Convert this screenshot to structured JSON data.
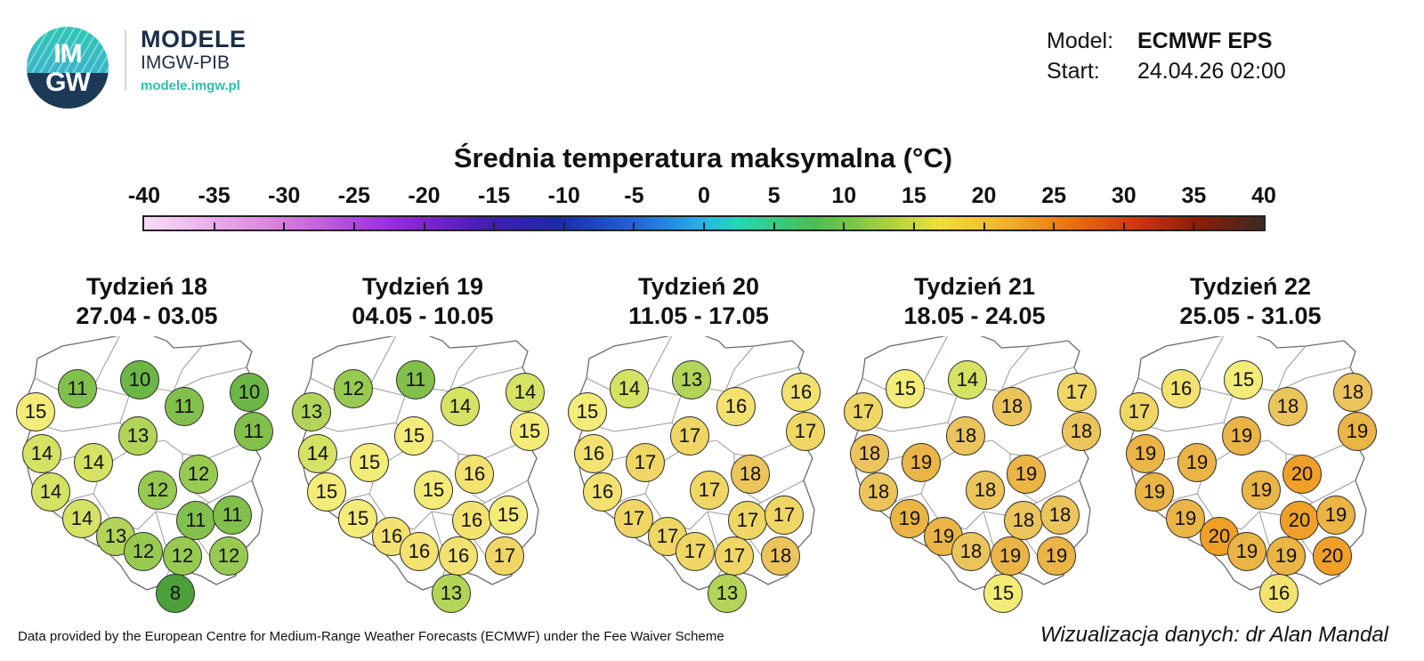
{
  "header": {
    "logo_top": "IM",
    "logo_bottom": "GW",
    "brand_line1": "MODELE",
    "brand_line2": "IMGW-PIB",
    "brand_url": "modele.imgw.pl",
    "model_label": "Model:",
    "model_value": "ECMWF EPS",
    "start_label": "Start:",
    "start_value": "24.04.26 02:00"
  },
  "scale": {
    "title": "Średnia temperatura maksymalna (°C)",
    "ticks": [
      "-40",
      "-35",
      "-30",
      "-25",
      "-20",
      "-15",
      "-10",
      "-5",
      "0",
      "5",
      "10",
      "15",
      "20",
      "25",
      "30",
      "35",
      "40"
    ],
    "min": -40,
    "max": 40
  },
  "weeks": [
    {
      "title": "Tydzień 18",
      "dates": "27.04 - 03.05",
      "values": [
        11,
        10,
        15,
        11,
        10,
        13,
        11,
        14,
        14,
        12,
        14,
        12,
        11,
        14,
        13,
        11,
        12,
        12,
        12,
        8
      ]
    },
    {
      "title": "Tydzień 19",
      "dates": "04.05 - 10.05",
      "values": [
        12,
        11,
        13,
        14,
        14,
        15,
        15,
        14,
        15,
        16,
        15,
        15,
        16,
        15,
        16,
        15,
        16,
        16,
        17,
        13
      ]
    },
    {
      "title": "Tydzień 20",
      "dates": "11.05 - 17.05",
      "values": [
        14,
        13,
        15,
        16,
        16,
        17,
        17,
        16,
        17,
        18,
        16,
        17,
        17,
        17,
        17,
        17,
        17,
        17,
        18,
        13
      ]
    },
    {
      "title": "Tydzień 21",
      "dates": "18.05 - 24.05",
      "values": [
        15,
        14,
        17,
        18,
        17,
        18,
        18,
        18,
        19,
        19,
        18,
        18,
        18,
        19,
        19,
        18,
        18,
        19,
        19,
        15
      ]
    },
    {
      "title": "Tydzień 22",
      "dates": "25.05 - 31.05",
      "values": [
        16,
        15,
        17,
        18,
        18,
        19,
        19,
        19,
        19,
        20,
        19,
        19,
        20,
        19,
        20,
        19,
        19,
        19,
        20,
        16
      ]
    }
  ],
  "footer": {
    "left": "Data provided by the European Centre for Medium-Range Weather Forecasts (ECMWF) under the Fee Waiver Scheme",
    "right": "Wizualizacja danych: dr Alan Mandal"
  }
}
